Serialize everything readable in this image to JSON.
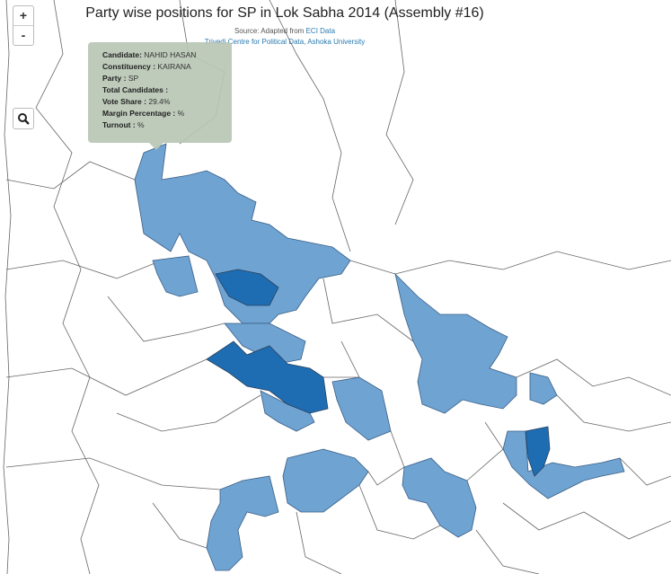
{
  "header": {
    "title": "Party wise positions for SP in Lok Sabha 2014 (Assembly #16)",
    "source_prefix": "Source: Adapted from",
    "source_link": "ECI Data",
    "credit_link": "Trivedi Centre for Political Data, Ashoka University"
  },
  "controls": {
    "zoom_in": "+",
    "zoom_out": "-"
  },
  "tooltip": {
    "rows": [
      {
        "label": "Candidate:",
        "value": "NAHID HASAN"
      },
      {
        "label": "Constituency :",
        "value": "KAIRANA"
      },
      {
        "label": "Party :",
        "value": "SP"
      },
      {
        "label": "Total Candidates :"
      },
      {
        "label": "Vote Share :",
        "value": "29.4%"
      },
      {
        "label": "Margin Percentage :",
        "value": "%"
      },
      {
        "label": "Turnout :",
        "value": "%"
      }
    ]
  }
}
